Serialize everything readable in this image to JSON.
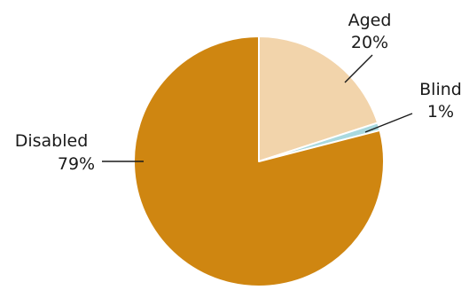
{
  "chart_data": {
    "type": "pie",
    "title": "",
    "slices": [
      {
        "label": "Aged",
        "value": 20,
        "value_label": "20%",
        "color": "#f2d4ab"
      },
      {
        "label": "Blind",
        "value": 1,
        "value_label": "1%",
        "color": "#a9d9df"
      },
      {
        "label": "Disabled",
        "value": 79,
        "value_label": "79%",
        "color": "#cf8611"
      }
    ],
    "start_angle": "12 o'clock",
    "direction": "clockwise",
    "slice_border_color": "#ffffff",
    "leader_line_color": "#1a1a1a"
  }
}
